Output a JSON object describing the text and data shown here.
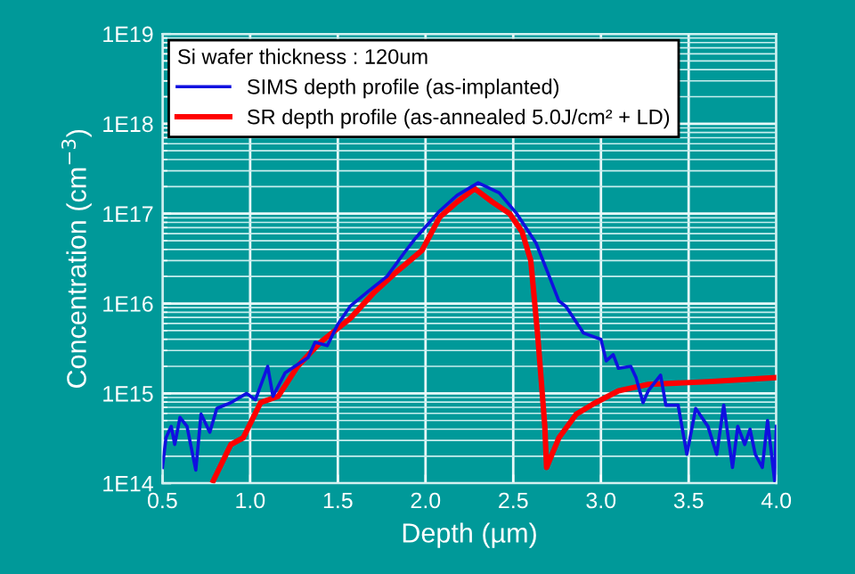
{
  "chart_data": {
    "type": "line",
    "xlabel": "Depth (µm)",
    "ylabel": "Concentration (cm$^{−3}$)",
    "legend_title": "Si wafer thickness : 120um",
    "legend": "top left",
    "grid": true,
    "log": "y",
    "xlim": [
      0.5,
      4.0
    ],
    "xticks": [
      {
        "value": 0.5,
        "label": "0.5"
      },
      {
        "value": 1.0,
        "label": "1.0"
      },
      {
        "value": 1.5,
        "label": "1.5"
      },
      {
        "value": 2.0,
        "label": "2.0"
      },
      {
        "value": 2.5,
        "label": "2.5"
      },
      {
        "value": 3.0,
        "label": "3.0"
      },
      {
        "value": 3.5,
        "label": "3.5"
      },
      {
        "value": 4.0,
        "label": "4.0"
      }
    ],
    "ylim": [
      100000000000000.0,
      1e+19
    ],
    "yticks": [
      {
        "value": 100000000000000.0,
        "label": "1E14"
      },
      {
        "value": 1000000000000000.0,
        "label": "1E15"
      },
      {
        "value": 1e+16,
        "label": "1E16"
      },
      {
        "value": 1e+17,
        "label": "1E17"
      },
      {
        "value": 1e+18,
        "label": "1E18"
      },
      {
        "value": 1e+19,
        "label": "1E19"
      }
    ],
    "series": [
      {
        "name": "SIMS depth profile (as-implanted)",
        "color": "#1010e0",
        "x": [
          0.5,
          0.52,
          0.55,
          0.57,
          0.6,
          0.64,
          0.69,
          0.72,
          0.77,
          0.81,
          0.89,
          0.98,
          1.03,
          1.1,
          1.13,
          1.2,
          1.27,
          1.33,
          1.37,
          1.44,
          1.5,
          1.57,
          1.67,
          1.78,
          1.88,
          1.945,
          2.08,
          2.18,
          2.3,
          2.42,
          2.52,
          2.63,
          2.71,
          2.76,
          2.8,
          2.9,
          3.0,
          3.03,
          3.07,
          3.1,
          3.17,
          3.2,
          3.24,
          3.27,
          3.34,
          3.37,
          3.44,
          3.49,
          3.54,
          3.61,
          3.66,
          3.7,
          3.75,
          3.78,
          3.82,
          3.85,
          3.88,
          3.92,
          3.95,
          3.99,
          4.0
        ],
        "values": [
          150000000000000.0,
          320000000000000.0,
          430000000000000.0,
          270000000000000.0,
          540000000000000.0,
          430000000000000.0,
          140000000000000.0,
          590000000000000.0,
          370000000000000.0,
          680000000000000.0,
          790000000000000.0,
          1000000000000000.0,
          850000000000000.0,
          2000000000000000.0,
          930000000000000.0,
          1700000000000000.0,
          2100000000000000.0,
          2500000000000000.0,
          3700000000000000.0,
          3400000000000000.0,
          5900000000000000.0,
          9300000000000000.0,
          1.35e+16,
          2e+16,
          3.7e+16,
          5.4e+16,
          1.07e+17,
          1.6e+17,
          2.2e+17,
          1.7e+17,
          1e+17,
          4.7e+16,
          1.9e+16,
          1.07e+16,
          9300000000000000.0,
          4700000000000000.0,
          4000000000000000.0,
          2300000000000000.0,
          2700000000000000.0,
          1900000000000000.0,
          2000000000000000.0,
          1500000000000000.0,
          790000000000000.0,
          1070000000000000.0,
          1600000000000000.0,
          740000000000000.0,
          740000000000000.0,
          210000000000000.0,
          680000000000000.0,
          430000000000000.0,
          210000000000000.0,
          740000000000000.0,
          150000000000000.0,
          430000000000000.0,
          270000000000000.0,
          400000000000000.0,
          210000000000000.0,
          150000000000000.0,
          500000000000000.0,
          107000000000000.0,
          430000000000000.0
        ]
      },
      {
        "name": "SR depth profile (as-annealed 5.0J/cm² + LD)",
        "color": "#ff0000",
        "x": [
          0.79,
          0.89,
          0.96,
          1.06,
          1.16,
          1.27,
          1.4,
          1.57,
          1.71,
          1.84,
          1.98,
          2.08,
          2.18,
          2.28,
          2.38,
          2.48,
          2.55,
          2.6,
          2.64,
          2.68,
          2.69,
          2.76,
          2.86,
          2.97,
          3.1,
          3.27,
          3.61,
          4.0
        ],
        "values": [
          107000000000000.0,
          270000000000000.0,
          320000000000000.0,
          790000000000000.0,
          930000000000000.0,
          2000000000000000.0,
          3700000000000000.0,
          6800000000000000.0,
          1.35e+16,
          2.3e+16,
          3.9e+16,
          9.1e+16,
          1.35e+17,
          1.9e+17,
          1.35e+17,
          1e+17,
          6.3e+16,
          3e+16,
          4300000000000000.0,
          430000000000000.0,
          150000000000000.0,
          320000000000000.0,
          590000000000000.0,
          790000000000000.0,
          1070000000000000.0,
          1260000000000000.0,
          1350000000000000.0,
          1500000000000000.0
        ]
      }
    ]
  }
}
